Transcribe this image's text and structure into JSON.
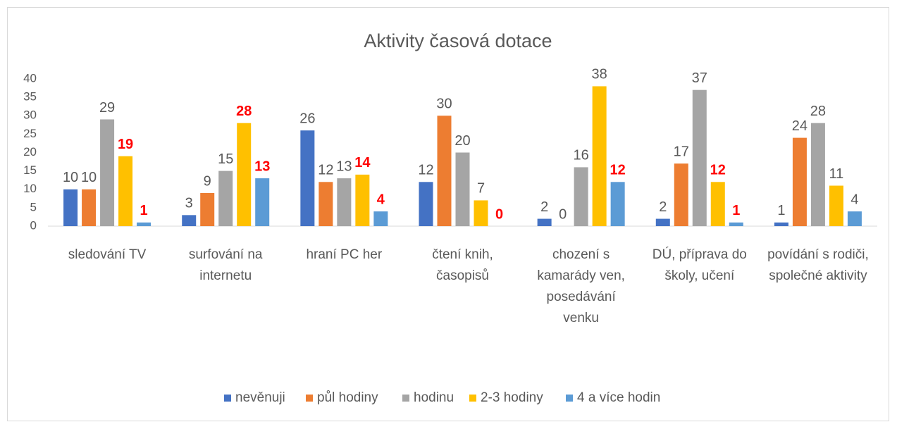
{
  "chart_data": {
    "type": "bar",
    "title": "Aktivity časová dotace",
    "categories": [
      "sledování TV",
      "surfování na internetu",
      "hraní PC her",
      "čtení knih, časopisů",
      "chození s kamarády ven, posedávání venku",
      "DÚ, příprava do školy, učení",
      "povídání s rodiči, společné aktivity"
    ],
    "series": [
      {
        "name": "nevěnuji",
        "color": "#4472c4",
        "values": [
          10,
          3,
          26,
          12,
          2,
          2,
          1
        ],
        "label_emphasis": [
          false,
          false,
          false,
          false,
          false,
          false,
          false
        ]
      },
      {
        "name": "půl hodiny",
        "color": "#ed7d31",
        "values": [
          10,
          9,
          12,
          30,
          0,
          17,
          24
        ],
        "label_emphasis": [
          false,
          false,
          false,
          false,
          false,
          false,
          false
        ]
      },
      {
        "name": "hodinu",
        "color": "#a5a5a5",
        "values": [
          29,
          15,
          13,
          20,
          16,
          37,
          28
        ],
        "label_emphasis": [
          false,
          false,
          false,
          false,
          false,
          false,
          false
        ]
      },
      {
        "name": "2-3 hodiny",
        "color": "#ffc000",
        "values": [
          19,
          28,
          14,
          7,
          38,
          12,
          11
        ],
        "label_emphasis": [
          true,
          true,
          true,
          false,
          false,
          true,
          false
        ]
      },
      {
        "name": "4 a více hodin",
        "color": "#5b9bd5",
        "values": [
          1,
          13,
          4,
          0,
          12,
          1,
          4
        ],
        "label_emphasis": [
          true,
          true,
          true,
          true,
          true,
          true,
          false
        ]
      }
    ],
    "ylim": [
      0,
      40
    ],
    "yticks": [
      0,
      5,
      10,
      15,
      20,
      25,
      30,
      35,
      40
    ],
    "grid": false,
    "legend": "bottom",
    "emphasis_color": "#ff0000"
  }
}
